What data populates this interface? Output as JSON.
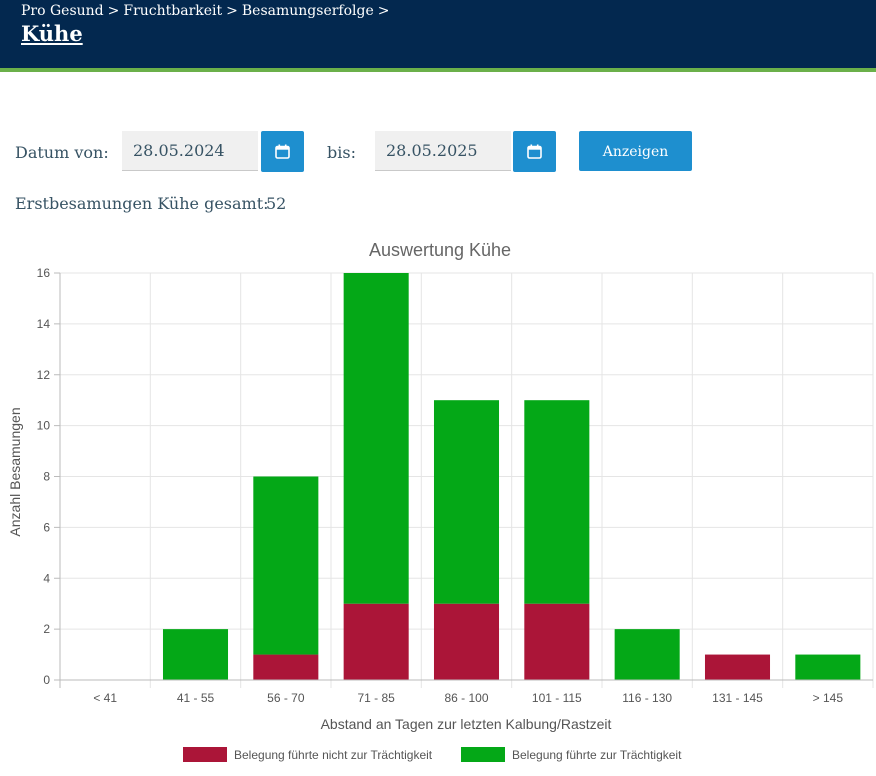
{
  "breadcrumb": [
    "Pro Gesund",
    ">",
    "Fruchtbarkeit",
    ">",
    "Besamungserfolge",
    ">"
  ],
  "page_title": "Kühe",
  "filter": {
    "from_label": "Datum von:",
    "from_value": "28.05.2024",
    "to_label": "bis:",
    "to_value": "28.05.2025",
    "show_button": "Anzeigen"
  },
  "summary": {
    "label": "Erstbesamungen Kühe gesamt:",
    "value": "52"
  },
  "colors": {
    "header_bg": "#03284f",
    "accent": "#1e8fcf",
    "not_pregnant": "#ab1538",
    "pregnant": "#04a817"
  },
  "chart_data": {
    "type": "bar",
    "stacked": true,
    "title": "Auswertung Kühe",
    "xlabel": "Abstand an Tagen zur letzten Kalbung/Rastzeit",
    "ylabel": "Anzahl Besamungen",
    "ylim": [
      0,
      16
    ],
    "yticks": [
      0,
      2,
      4,
      6,
      8,
      10,
      12,
      14,
      16
    ],
    "grid": true,
    "legend_position": "bottom",
    "categories": [
      "< 41",
      "41 - 55",
      "56 - 70",
      "71 - 85",
      "86 - 100",
      "101 - 115",
      "116 - 130",
      "131 - 145",
      "> 145"
    ],
    "series": [
      {
        "name": "Belegung führte nicht zur Trächtigkeit",
        "color": "#ab1538",
        "values": [
          0,
          0,
          1,
          3,
          3,
          3,
          0,
          1,
          0
        ]
      },
      {
        "name": "Belegung führte zur Trächtigkeit",
        "color": "#04a817",
        "values": [
          0,
          2,
          7,
          13,
          8,
          8,
          2,
          0,
          1
        ]
      }
    ]
  }
}
